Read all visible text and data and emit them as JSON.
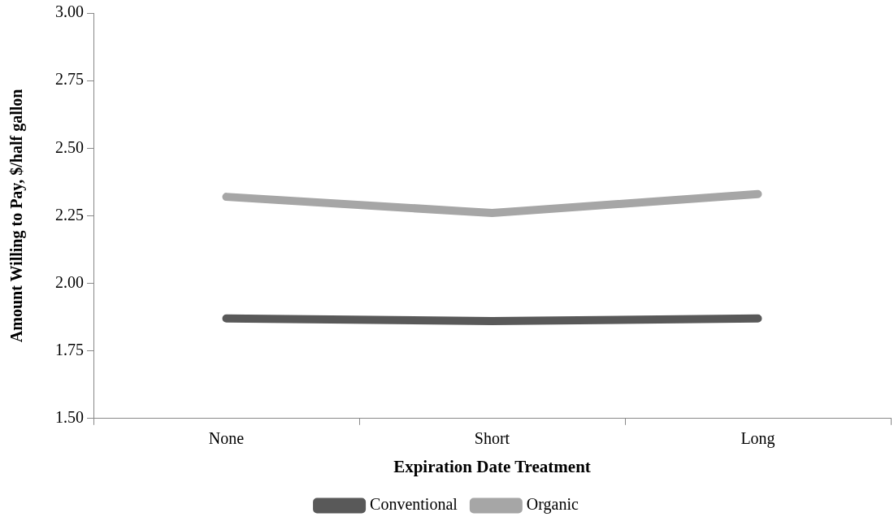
{
  "chart_data": {
    "type": "line",
    "xlabel": "Expiration Date Treatment",
    "ylabel": "Amount Willing to Pay, $/half gallon",
    "categories": [
      "None",
      "Short",
      "Long"
    ],
    "series": [
      {
        "name": "Conventional",
        "color": "#595959",
        "values": [
          1.87,
          1.86,
          1.87
        ]
      },
      {
        "name": "Organic",
        "color": "#a6a6a6",
        "values": [
          2.32,
          2.26,
          2.33
        ]
      }
    ],
    "ylim": [
      1.5,
      3.0
    ],
    "yticks": [
      {
        "value": 1.5,
        "label": "1.50"
      },
      {
        "value": 1.75,
        "label": "1.75"
      },
      {
        "value": 2.0,
        "label": "2.00"
      },
      {
        "value": 2.25,
        "label": "2.25"
      },
      {
        "value": 2.5,
        "label": "2.50"
      },
      {
        "value": 2.75,
        "label": "2.75"
      },
      {
        "value": 3.0,
        "label": "3.00"
      }
    ],
    "grid": false,
    "legend": "bottom",
    "marker": "none",
    "line_style": "solid"
  }
}
